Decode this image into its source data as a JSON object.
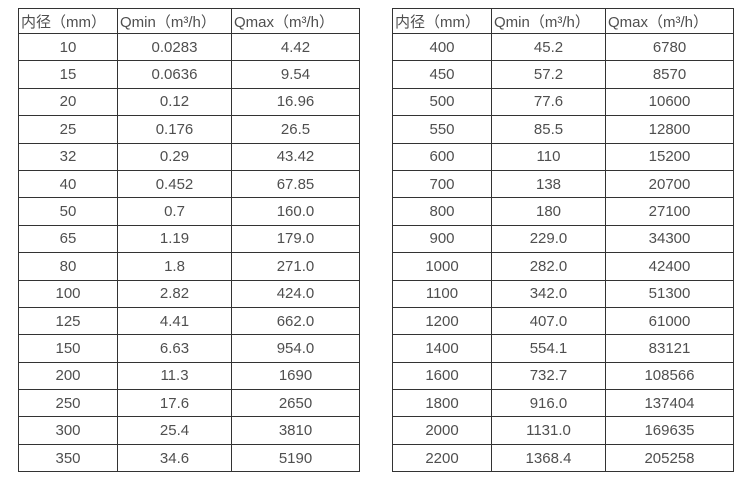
{
  "page": {
    "background_color": "#ffffff",
    "border_color": "#333333",
    "text_color": "#4f4f4f"
  },
  "tables": [
    {
      "name": "flow-rate-table-small-diameters",
      "headers": [
        "内径（mm）",
        "Qmin（m³/h）",
        "Qmax（m³/h）"
      ],
      "rows": [
        [
          "10",
          "0.0283",
          "4.42"
        ],
        [
          "15",
          "0.0636",
          "9.54"
        ],
        [
          "20",
          "0.12",
          "16.96"
        ],
        [
          "25",
          "0.176",
          "26.5"
        ],
        [
          "32",
          "0.29",
          "43.42"
        ],
        [
          "40",
          "0.452",
          "67.85"
        ],
        [
          "50",
          "0.7",
          "160.0"
        ],
        [
          "65",
          "1.19",
          "179.0"
        ],
        [
          "80",
          "1.8",
          "271.0"
        ],
        [
          "100",
          "2.82",
          "424.0"
        ],
        [
          "125",
          "4.41",
          "662.0"
        ],
        [
          "150",
          "6.63",
          "954.0"
        ],
        [
          "200",
          "11.3",
          "1690"
        ],
        [
          "250",
          "17.6",
          "2650"
        ],
        [
          "300",
          "25.4",
          "3810"
        ],
        [
          "350",
          "34.6",
          "5190"
        ]
      ]
    },
    {
      "name": "flow-rate-table-large-diameters",
      "headers": [
        "内径（mm）",
        "Qmin（m³/h）",
        "Qmax（m³/h）"
      ],
      "rows": [
        [
          "400",
          "45.2",
          "6780"
        ],
        [
          "450",
          "57.2",
          "8570"
        ],
        [
          "500",
          "77.6",
          "10600"
        ],
        [
          "550",
          "85.5",
          "12800"
        ],
        [
          "600",
          "110",
          "15200"
        ],
        [
          "700",
          "138",
          "20700"
        ],
        [
          "800",
          "180",
          "27100"
        ],
        [
          "900",
          "229.0",
          "34300"
        ],
        [
          "1000",
          "282.0",
          "42400"
        ],
        [
          "1100",
          "342.0",
          "51300"
        ],
        [
          "1200",
          "407.0",
          "61000"
        ],
        [
          "1400",
          "554.1",
          "83121"
        ],
        [
          "1600",
          "732.7",
          "108566"
        ],
        [
          "1800",
          "916.0",
          "137404"
        ],
        [
          "2000",
          "1131.0",
          "169635"
        ],
        [
          "2200",
          "1368.4",
          "205258"
        ]
      ]
    }
  ]
}
